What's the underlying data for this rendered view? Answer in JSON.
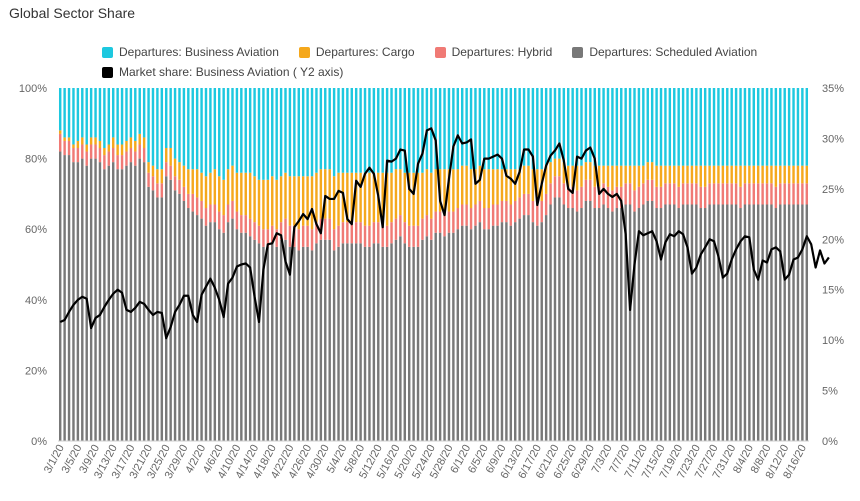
{
  "chart_data": {
    "type": "bar",
    "title": "Global Sector Share",
    "stacked": true,
    "percent_stacked": true,
    "ylim": [
      0,
      100
    ],
    "y_ticks": [
      "0%",
      "20%",
      "40%",
      "60%",
      "80%",
      "100%"
    ],
    "y2lim": [
      0,
      35
    ],
    "y2_ticks": [
      "0%",
      "5%",
      "10%",
      "15%",
      "20%",
      "25%",
      "30%",
      "35%"
    ],
    "legend_position": "top-left",
    "x_tick_labels": [
      "3/1/20",
      "3/5/20",
      "3/9/20",
      "3/13/20",
      "3/17/20",
      "3/21/20",
      "3/25/20",
      "3/29/20",
      "4/2/20",
      "4/6/20",
      "4/10/20",
      "4/14/20",
      "4/18/20",
      "4/22/20",
      "4/26/20",
      "4/30/20",
      "5/4/20",
      "5/8/20",
      "5/12/20",
      "5/16/20",
      "5/20/20",
      "5/24/20",
      "5/28/20",
      "6/1/20",
      "6/5/20",
      "6/9/20",
      "6/13/20",
      "6/17/20",
      "6/21/20",
      "6/25/20",
      "6/29/20",
      "7/3/20",
      "7/7/20",
      "7/11/20",
      "7/15/20",
      "7/19/20",
      "7/23/20",
      "7/27/20",
      "7/31/20",
      "8/4/20",
      "8/8/20",
      "8/12/20",
      "8/16/20"
    ],
    "x_start_date": "2020-03-01",
    "series": [
      {
        "name": "Departures: Scheduled Aviation",
        "color": "#787878",
        "type": "bar",
        "values": [
          82,
          81,
          81,
          79,
          79,
          80,
          78,
          80,
          80,
          79,
          77,
          78,
          79,
          77,
          77,
          78,
          79,
          78,
          80,
          79,
          72,
          71,
          69,
          69,
          75,
          74,
          71,
          70,
          68,
          66,
          65,
          64,
          63,
          61,
          62,
          62,
          60,
          59,
          62,
          63,
          60,
          59,
          59,
          58,
          57,
          56,
          55,
          55,
          56,
          55,
          57,
          57,
          55,
          55,
          54,
          55,
          55,
          54,
          56,
          57,
          57,
          57,
          54,
          55,
          56,
          56,
          56,
          56,
          56,
          55,
          55,
          56,
          56,
          55,
          55,
          56,
          57,
          58,
          56,
          55,
          55,
          55,
          57,
          58,
          57,
          59,
          59,
          58,
          59,
          59,
          60,
          61,
          61,
          60,
          61,
          62,
          60,
          60,
          61,
          61,
          62,
          62,
          61,
          62,
          63,
          64,
          64,
          62,
          61,
          62,
          64,
          67,
          69,
          69,
          67,
          66,
          66,
          65,
          66,
          68,
          68,
          66,
          66,
          67,
          66,
          65,
          66,
          66,
          67,
          67,
          65,
          66,
          67,
          68,
          68,
          66,
          66,
          67,
          67,
          67,
          66,
          67,
          67,
          67,
          67,
          66,
          66,
          67,
          67,
          67,
          67,
          67,
          67,
          67,
          66,
          67,
          67,
          67,
          67,
          67,
          67,
          67,
          66,
          67,
          67,
          67,
          67,
          67,
          67,
          67
        ]
      },
      {
        "name": "Departures: Hybrid",
        "color": "#f07a75",
        "type": "bar",
        "values": [
          5,
          4,
          4,
          4,
          4,
          4,
          4,
          4,
          4,
          4,
          4,
          4,
          4,
          4,
          4,
          4,
          4,
          4,
          4,
          4,
          4,
          4,
          4,
          4,
          4,
          4,
          4,
          4,
          4,
          4,
          5,
          5,
          5,
          5,
          5,
          5,
          5,
          5,
          5,
          5,
          5,
          5,
          5,
          5,
          5,
          5,
          5,
          5,
          5,
          5,
          5,
          6,
          6,
          6,
          6,
          6,
          6,
          6,
          6,
          6,
          6,
          6,
          6,
          6,
          6,
          6,
          6,
          6,
          6,
          6,
          6,
          6,
          6,
          6,
          6,
          6,
          6,
          6,
          6,
          6,
          6,
          6,
          6,
          6,
          6,
          6,
          6,
          6,
          6,
          6,
          6,
          6,
          6,
          6,
          6,
          6,
          6,
          6,
          6,
          6,
          6,
          6,
          6,
          6,
          6,
          6,
          6,
          6,
          6,
          6,
          6,
          6,
          6,
          6,
          6,
          6,
          6,
          6,
          6,
          6,
          6,
          6,
          6,
          6,
          6,
          6,
          6,
          6,
          6,
          6,
          6,
          6,
          6,
          6,
          6,
          6,
          6,
          6,
          6,
          6,
          6,
          6,
          6,
          6,
          6,
          6,
          6,
          6,
          6,
          6,
          6,
          6,
          6,
          6,
          6,
          6,
          6,
          6,
          6,
          6,
          6,
          6,
          6,
          6,
          6,
          6,
          6,
          6,
          6,
          6
        ]
      },
      {
        "name": "Departures: Cargo",
        "color": "#f5a81c",
        "type": "bar",
        "values": [
          1,
          1,
          1,
          1,
          2,
          2,
          2,
          2,
          2,
          2,
          2,
          2,
          3,
          3,
          3,
          3,
          3,
          3,
          3,
          3,
          3,
          3,
          4,
          4,
          4,
          5,
          5,
          5,
          6,
          7,
          7,
          8,
          8,
          9,
          9,
          10,
          10,
          10,
          10,
          10,
          11,
          12,
          12,
          13,
          13,
          13,
          14,
          14,
          14,
          14,
          13,
          13,
          14,
          14,
          15,
          14,
          14,
          15,
          14,
          14,
          14,
          14,
          15,
          15,
          14,
          14,
          14,
          14,
          14,
          15,
          15,
          14,
          14,
          15,
          15,
          14,
          14,
          13,
          14,
          15,
          15,
          15,
          13,
          13,
          13,
          12,
          12,
          13,
          12,
          12,
          11,
          11,
          11,
          11,
          10,
          10,
          11,
          11,
          10,
          10,
          9,
          9,
          10,
          9,
          8,
          8,
          8,
          9,
          10,
          9,
          8,
          6,
          5,
          5,
          6,
          6,
          6,
          7,
          6,
          5,
          5,
          6,
          6,
          5,
          6,
          7,
          6,
          6,
          5,
          5,
          7,
          6,
          5,
          5,
          5,
          6,
          6,
          5,
          5,
          5,
          6,
          5,
          5,
          5,
          5,
          6,
          6,
          5,
          5,
          5,
          5,
          5,
          5,
          5,
          6,
          5,
          5,
          5,
          5,
          5,
          5,
          5,
          6,
          5,
          5,
          5,
          5,
          5,
          5,
          5
        ]
      },
      {
        "name": "Departures: Business Aviation",
        "color": "#1dc8df",
        "type": "bar",
        "values": [
          12,
          14,
          14,
          16,
          15,
          14,
          16,
          14,
          14,
          15,
          17,
          16,
          14,
          16,
          16,
          15,
          14,
          15,
          13,
          14,
          21,
          22,
          23,
          23,
          17,
          17,
          20,
          21,
          22,
          23,
          23,
          23,
          24,
          25,
          24,
          23,
          25,
          26,
          23,
          22,
          24,
          24,
          24,
          24,
          25,
          26,
          26,
          26,
          25,
          26,
          25,
          24,
          25,
          25,
          25,
          25,
          25,
          25,
          24,
          23,
          23,
          23,
          25,
          24,
          24,
          24,
          24,
          24,
          24,
          24,
          24,
          24,
          24,
          24,
          24,
          24,
          23,
          23,
          24,
          24,
          24,
          24,
          24,
          23,
          24,
          23,
          23,
          23,
          23,
          23,
          23,
          22,
          22,
          23,
          23,
          22,
          23,
          23,
          23,
          23,
          23,
          23,
          23,
          23,
          23,
          22,
          22,
          23,
          23,
          23,
          22,
          21,
          20,
          20,
          21,
          22,
          22,
          22,
          22,
          21,
          21,
          22,
          22,
          22,
          22,
          22,
          22,
          22,
          22,
          22,
          22,
          22,
          22,
          21,
          21,
          22,
          22,
          22,
          22,
          22,
          22,
          22,
          22,
          22,
          22,
          22,
          22,
          22,
          22,
          22,
          22,
          22,
          22,
          22,
          22,
          22,
          22,
          22,
          22,
          22,
          22,
          22,
          22,
          22,
          22,
          22,
          22,
          22,
          22,
          22
        ]
      },
      {
        "name": "Market share: Business Aviation ( Y2 axis)",
        "color": "#000000",
        "type": "line",
        "axis": "y2",
        "values": [
          11.8,
          12,
          12.8,
          13.5,
          14,
          14.3,
          14.1,
          11.2,
          12.2,
          12.5,
          13.3,
          14,
          14.6,
          15,
          14.7,
          13,
          12.8,
          13.2,
          13.8,
          13.6,
          13,
          12.5,
          12.8,
          12.7,
          10.2,
          11.3,
          12.8,
          13.5,
          14.4,
          14.4,
          12.5,
          11.8,
          14.5,
          15.3,
          16.1,
          15.2,
          14,
          12.3,
          15.6,
          16.2,
          17.3,
          17.5,
          17.6,
          17.2,
          14.3,
          11.8,
          17,
          19.5,
          19.6,
          20.6,
          20.4,
          17.8,
          16.5,
          21.2,
          21.8,
          22.5,
          22,
          23,
          21.5,
          20.6,
          24.3,
          24,
          24,
          24.8,
          24.6,
          22,
          21.5,
          25.8,
          25.2,
          26.5,
          27.1,
          26.5,
          24.3,
          21.2,
          27.8,
          27.7,
          28,
          28.9,
          28.8,
          25,
          24.5,
          27.5,
          28.5,
          30.8,
          31,
          29.8,
          23.8,
          22.4,
          26,
          29.2,
          30.3,
          29.5,
          29.6,
          29.9,
          25.5,
          25.9,
          28,
          28,
          28.2,
          28.4,
          28,
          26.3,
          26,
          25.5,
          26.7,
          28.9,
          28.9,
          28.2,
          23.4,
          25.5,
          27.3,
          28.3,
          28.8,
          29.5,
          27.8,
          25,
          24.6,
          28.2,
          28,
          28.8,
          29.1,
          28,
          24.5,
          25,
          24.5,
          24.2,
          24.5,
          23.8,
          20.5,
          13,
          17.5,
          20.8,
          20.4,
          20.6,
          20.8,
          19.8,
          18,
          19.7,
          20.5,
          20.3,
          20.8,
          20.5,
          19.2,
          16.6,
          17.2,
          18.5,
          19.2,
          20,
          19.8,
          18.3,
          16.2,
          16.6,
          18,
          19,
          19.8,
          20.3,
          20.2,
          17,
          16,
          17.9,
          17.7,
          19,
          19.2,
          18.8,
          16,
          16.5,
          18,
          18.2,
          19,
          20.3,
          19.5,
          17.2,
          18.9,
          17.6,
          18.2
        ]
      }
    ]
  }
}
